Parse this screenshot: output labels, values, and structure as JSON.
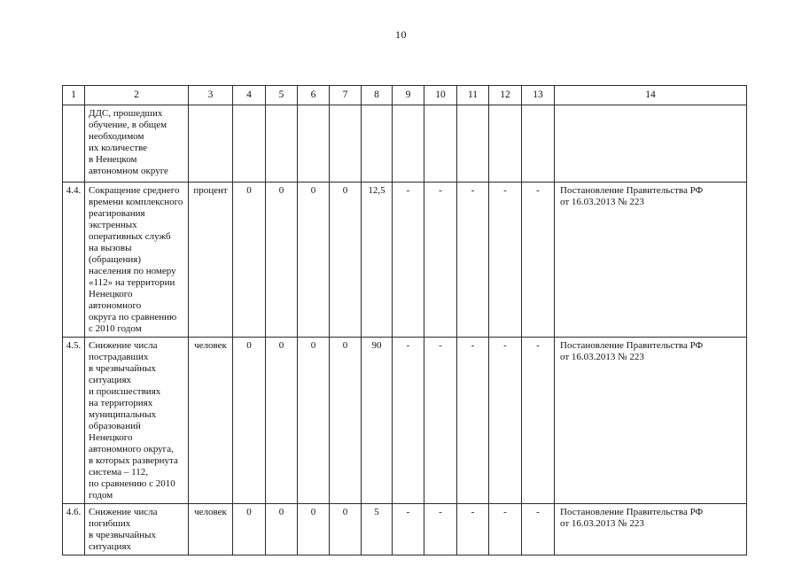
{
  "page": {
    "number": "10"
  },
  "table": {
    "column_headers": [
      "1",
      "2",
      "3",
      "4",
      "5",
      "6",
      "7",
      "8",
      "9",
      "10",
      "11",
      "12",
      "13",
      "14"
    ],
    "rows": [
      {
        "num": "",
        "name": "ДДС, прошедших\nобучение, в общем\nнеобходимом\nих количестве\nв Ненецком\nавтономном округе",
        "unit": "",
        "values": [
          "",
          "",
          "",
          "",
          "",
          "",
          "",
          "",
          "",
          ""
        ],
        "basis": ""
      },
      {
        "num": "4.4.",
        "name": "Сокращение среднего\nвремени комплексного\nреагирования\nэкстренных\nоперативных служб\nна вызовы (обращения)\nнаселения по номеру\n«112» на территории\nНенецкого автономного\nокруга по сравнению\nс 2010 годом",
        "unit": "процент",
        "values": [
          "0",
          "0",
          "0",
          "0",
          "12,5",
          "-",
          "-",
          "-",
          "-",
          "-"
        ],
        "basis": "Постановление Правительства РФ\nот 16.03.2013 № 223"
      },
      {
        "num": "4.5.",
        "name": "Снижение числа\nпострадавших\nв чрезвычайных\nситуациях\nи происшествиях\nна территориях\nмуниципальных\nобразований Ненецкого\nавтономного округа,\nв которых развернута\nсистема – 112,\nпо сравнению с 2010\nгодом",
        "unit": "человек",
        "values": [
          "0",
          "0",
          "0",
          "0",
          "90",
          "-",
          "-",
          "-",
          "-",
          "-"
        ],
        "basis": "Постановление Правительства РФ\nот 16.03.2013 № 223"
      },
      {
        "num": "4.6.",
        "name": "Снижение числа\nпогибших\nв чрезвычайных\nситуациях",
        "unit": "человек",
        "values": [
          "0",
          "0",
          "0",
          "0",
          "5",
          "-",
          "-",
          "-",
          "-",
          "-"
        ],
        "basis": "Постановление Правительства РФ\nот 16.03.2013 № 223"
      }
    ]
  }
}
